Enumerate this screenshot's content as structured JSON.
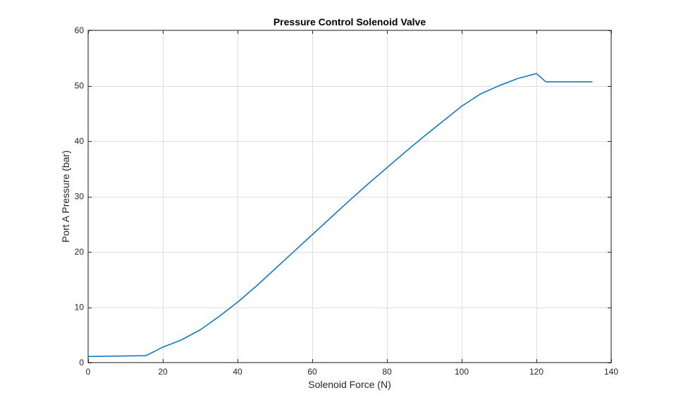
{
  "chart_data": {
    "type": "line",
    "title": "Pressure Control Solenoid Valve",
    "xlabel": "Solenoid Force (N)",
    "ylabel": "Port A Pressure (bar)",
    "xlim": [
      0,
      140
    ],
    "ylim": [
      0,
      60
    ],
    "xticks": [
      0,
      20,
      40,
      60,
      80,
      100,
      120,
      140
    ],
    "yticks": [
      0,
      10,
      20,
      30,
      40,
      50,
      60
    ],
    "xtick_labels": [
      "0",
      "20",
      "40",
      "60",
      "80",
      "100",
      "120",
      "140"
    ],
    "ytick_labels": [
      "0",
      "10",
      "20",
      "30",
      "40",
      "50",
      "60"
    ],
    "grid": true,
    "line_color": "#0072BD",
    "series": [
      {
        "x": [
          0,
          5,
          10,
          15.5,
          18,
          20,
          22,
          25,
          30,
          35,
          40,
          45,
          50,
          55,
          60,
          65,
          70,
          75,
          80,
          85,
          90,
          95,
          100,
          105,
          110,
          115,
          120,
          122.5,
          126,
          130,
          135
        ],
        "y": [
          1.1,
          1.15,
          1.2,
          1.25,
          2.1,
          2.8,
          3.3,
          4.1,
          5.9,
          8.3,
          10.9,
          13.8,
          16.9,
          20.0,
          23.1,
          26.2,
          29.3,
          32.3,
          35.2,
          38.1,
          40.9,
          43.6,
          46.3,
          48.5,
          50.0,
          51.3,
          52.2,
          50.7,
          50.7,
          50.7,
          50.7
        ]
      }
    ]
  }
}
